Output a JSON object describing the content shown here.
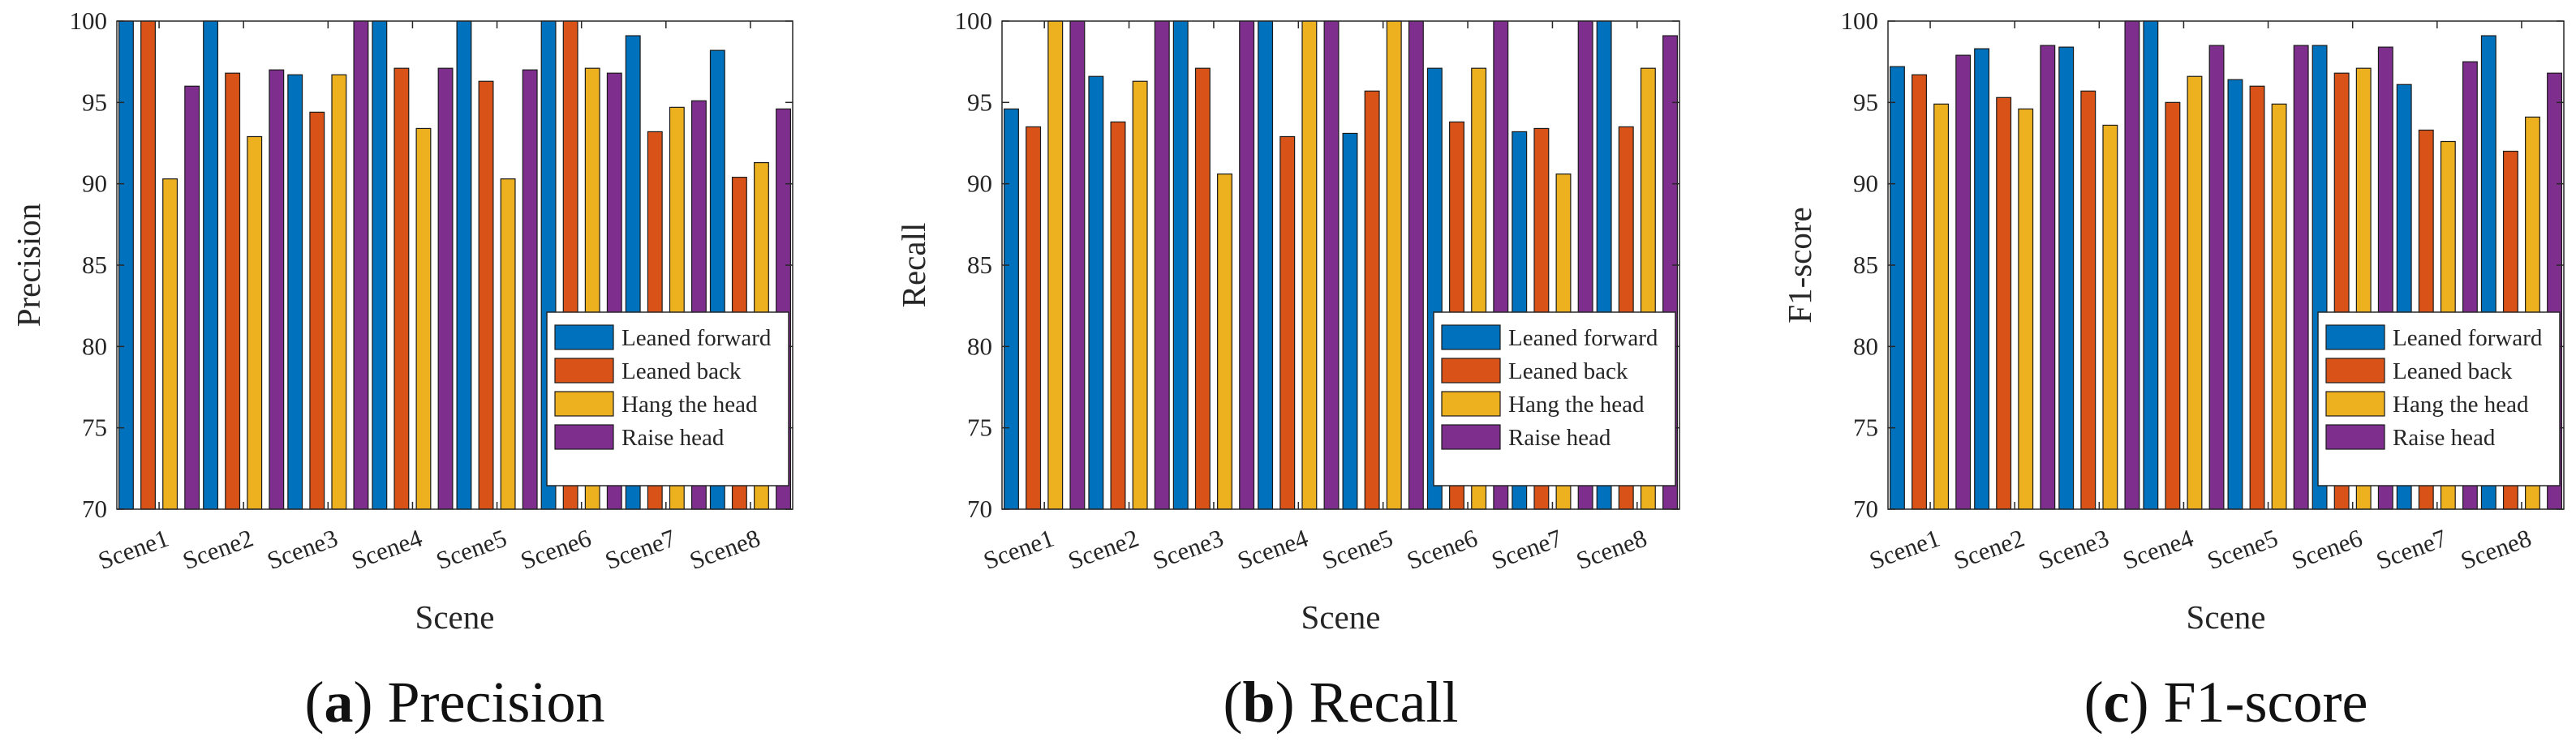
{
  "series_colors": [
    "#0072BD",
    "#D95319",
    "#EDB120",
    "#7E2F8E"
  ],
  "chart_data": [
    {
      "type": "bar",
      "title": "Precision",
      "caption_letter": "a",
      "caption_text": "Precision",
      "xlabel": "Scene",
      "ylabel": "Precision",
      "ylim": [
        70,
        100
      ],
      "yticks": [
        "70",
        "75",
        "80",
        "85",
        "90",
        "95",
        "100"
      ],
      "categories": [
        "Scene1",
        "Scene2",
        "Scene3",
        "Scene4",
        "Scene5",
        "Scene6",
        "Scene7",
        "Scene8"
      ],
      "legend_position": "bottom-right",
      "series": [
        {
          "name": "Leaned forward",
          "values": [
            100,
            100,
            96.7,
            100,
            100,
            100,
            99.1,
            98.2
          ]
        },
        {
          "name": "Leaned back",
          "values": [
            100,
            96.8,
            94.4,
            97.1,
            96.3,
            100,
            93.2,
            90.4
          ]
        },
        {
          "name": "Hang the head",
          "values": [
            90.3,
            92.9,
            96.7,
            93.4,
            90.3,
            97.1,
            94.7,
            91.3
          ]
        },
        {
          "name": "Raise head",
          "values": [
            96.0,
            97.0,
            100,
            97.1,
            97.0,
            96.8,
            95.1,
            94.6
          ]
        }
      ]
    },
    {
      "type": "bar",
      "title": "Recall",
      "caption_letter": "b",
      "caption_text": "Recall",
      "xlabel": "Scene",
      "ylabel": "Recall",
      "ylim": [
        70,
        100
      ],
      "yticks": [
        "70",
        "75",
        "80",
        "85",
        "90",
        "95",
        "100"
      ],
      "categories": [
        "Scene1",
        "Scene2",
        "Scene3",
        "Scene4",
        "Scene5",
        "Scene6",
        "Scene7",
        "Scene8"
      ],
      "legend_position": "bottom-right",
      "series": [
        {
          "name": "Leaned forward",
          "values": [
            94.6,
            96.6,
            100,
            100,
            93.1,
            97.1,
            93.2,
            100
          ]
        },
        {
          "name": "Leaned back",
          "values": [
            93.5,
            93.8,
            97.1,
            92.9,
            95.7,
            93.8,
            93.4,
            93.5
          ]
        },
        {
          "name": "Hang the head",
          "values": [
            100,
            96.3,
            90.6,
            100,
            100,
            97.1,
            90.6,
            97.1
          ]
        },
        {
          "name": "Raise head",
          "values": [
            100,
            100,
            100,
            100,
            100,
            100,
            100,
            99.1
          ]
        }
      ]
    },
    {
      "type": "bar",
      "title": "F1-score",
      "caption_letter": "c",
      "caption_text": "F1-score",
      "xlabel": "Scene",
      "ylabel": "F1-score",
      "ylim": [
        70,
        100
      ],
      "yticks": [
        "70",
        "75",
        "80",
        "85",
        "90",
        "95",
        "100"
      ],
      "categories": [
        "Scene1",
        "Scene2",
        "Scene3",
        "Scene4",
        "Scene5",
        "Scene6",
        "Scene7",
        "Scene8"
      ],
      "legend_position": "bottom-right",
      "series": [
        {
          "name": "Leaned forward",
          "values": [
            97.2,
            98.3,
            98.4,
            100,
            96.4,
            98.5,
            96.1,
            99.1
          ]
        },
        {
          "name": "Leaned back",
          "values": [
            96.7,
            95.3,
            95.7,
            95.0,
            96.0,
            96.8,
            93.3,
            92.0
          ]
        },
        {
          "name": "Hang the head",
          "values": [
            94.9,
            94.6,
            93.6,
            96.6,
            94.9,
            97.1,
            92.6,
            94.1
          ]
        },
        {
          "name": "Raise head",
          "values": [
            97.9,
            98.5,
            100,
            98.5,
            98.5,
            98.4,
            97.5,
            96.8
          ]
        }
      ]
    }
  ]
}
